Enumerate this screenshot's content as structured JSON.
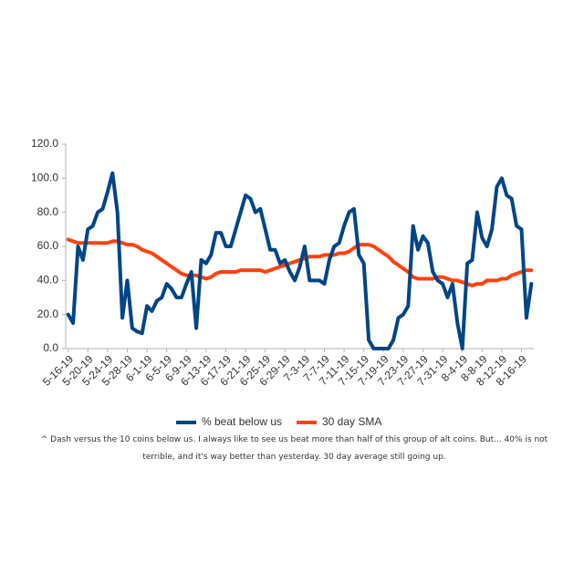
{
  "chart_data": {
    "type": "line",
    "caption": "^ Dash versus the 10 coins below us. I always like to see us beat more than half of this group of alt coins. But... 40% is not terrible, and it's way better than yesterday. 30 day average still going up.",
    "categories": [
      "5-16-19",
      null,
      null,
      null,
      "5-20-19",
      null,
      null,
      null,
      "5-24-19",
      null,
      null,
      null,
      "5-28-19",
      null,
      null,
      null,
      "6-1-19",
      null,
      null,
      null,
      "6-5-19",
      null,
      null,
      null,
      "6-9-19",
      null,
      null,
      null,
      "6-13-19",
      null,
      null,
      null,
      "6-17-19",
      null,
      null,
      null,
      "6-21-19",
      null,
      null,
      null,
      "6-25-19",
      null,
      null,
      null,
      "6-29-19",
      null,
      null,
      null,
      "7-3-19",
      null,
      null,
      null,
      "7-7-19",
      null,
      null,
      null,
      "7-11-19",
      null,
      null,
      null,
      "7-15-19",
      null,
      null,
      null,
      "7-19-19",
      null,
      null,
      null,
      "7-23-19",
      null,
      null,
      null,
      "7-27-19",
      null,
      null,
      null,
      "7-31-19",
      null,
      null,
      null,
      "8-4-19",
      null,
      null,
      null,
      "8-8-19",
      null,
      null,
      null,
      "8-12-19",
      null,
      null,
      null,
      "8-16-19",
      null,
      null
    ],
    "series": [
      {
        "name": "% beat below us",
        "color": "#004586",
        "values": [
          20,
          15,
          60,
          52,
          70,
          72,
          80,
          82,
          92,
          103,
          80,
          18,
          40,
          12,
          10,
          9,
          25,
          22,
          28,
          30,
          38,
          35,
          30,
          30,
          38,
          45,
          12,
          52,
          50,
          55,
          68,
          68,
          60,
          60,
          70,
          80,
          90,
          88,
          80,
          82,
          70,
          58,
          58,
          50,
          52,
          45,
          40,
          48,
          60,
          40,
          40,
          40,
          38,
          52,
          60,
          62,
          72,
          80,
          82,
          55,
          50,
          5,
          0,
          0,
          0,
          0,
          5,
          18,
          20,
          25,
          72,
          58,
          66,
          62,
          45,
          40,
          38,
          30,
          38,
          15,
          0,
          50,
          52,
          80,
          65,
          60,
          70,
          95,
          100,
          90,
          88,
          72,
          70,
          18,
          38
        ]
      },
      {
        "name": "30 day SMA",
        "color": "#ff420e",
        "values": [
          64,
          63,
          62,
          62,
          62,
          62,
          62,
          62,
          62,
          63,
          63,
          62,
          61,
          61,
          60,
          58,
          57,
          56,
          54,
          52,
          50,
          48,
          46,
          44,
          43,
          43,
          43,
          42,
          41,
          42,
          44,
          45,
          45,
          45,
          45,
          46,
          46,
          46,
          46,
          46,
          45,
          46,
          47,
          48,
          49,
          50,
          51,
          52,
          53,
          54,
          54,
          54,
          55,
          55,
          55,
          56,
          56,
          57,
          59,
          61,
          61,
          61,
          60,
          58,
          56,
          54,
          51,
          49,
          47,
          45,
          42,
          41,
          41,
          41,
          41,
          42,
          42,
          41,
          40,
          40,
          39,
          38,
          37,
          38,
          38,
          40,
          40,
          40,
          41,
          41,
          43,
          44,
          45,
          46,
          46
        ]
      }
    ],
    "ylim": [
      0,
      120
    ],
    "yticks": [
      {
        "value": 0,
        "label": "0.0"
      },
      {
        "value": 20,
        "label": "20.0"
      },
      {
        "value": 40,
        "label": "40.0"
      },
      {
        "value": 60,
        "label": "60.0"
      },
      {
        "value": 80,
        "label": "80.0"
      },
      {
        "value": 100,
        "label": "100.0"
      },
      {
        "value": 120,
        "label": "120.0"
      }
    ],
    "grid": false,
    "legend": "bottom"
  }
}
